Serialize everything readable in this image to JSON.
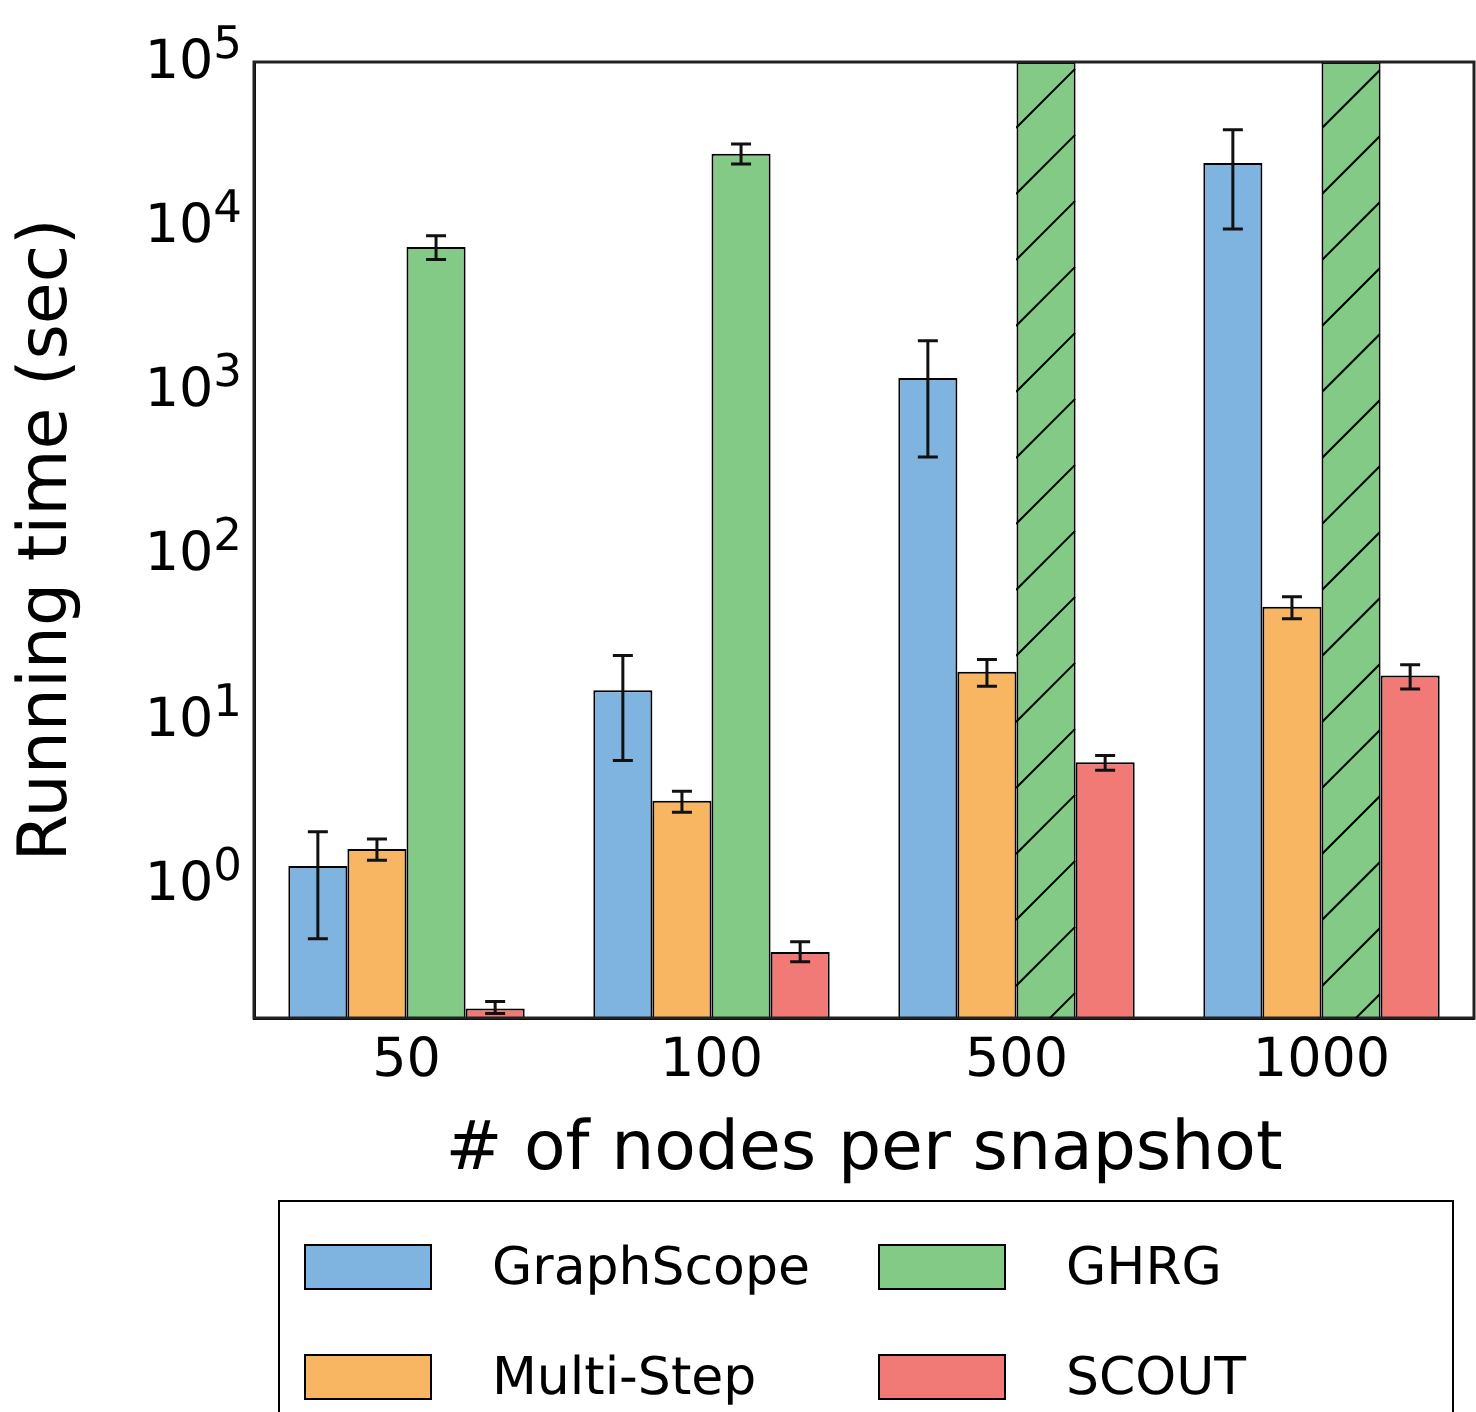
{
  "chart_data": {
    "type": "bar",
    "xlabel": "# of nodes per snapshot",
    "ylabel": "Running time (sec)",
    "categories": [
      "50",
      "100",
      "500",
      "1000"
    ],
    "log": true,
    "ylim": [
      0.155,
      100000
    ],
    "yticks": [
      {
        "value": 1,
        "label": "10$^{0}$"
      },
      {
        "value": 10,
        "label": "10$^{1}$"
      },
      {
        "value": 100,
        "label": "10$^{2}$"
      },
      {
        "value": 1000,
        "label": "10$^{3}$"
      },
      {
        "value": 10000,
        "label": "10$^{4}$"
      },
      {
        "value": 100000,
        "label": "10$^{5}$"
      }
    ],
    "grid": false,
    "legend": "bottom",
    "series": [
      {
        "name": "GraphScope",
        "color": "#7fb3e0",
        "values": [
          1.3,
          15.2,
          1200,
          24300
        ],
        "errors": [
          [
            0.47,
            2.1
          ],
          [
            5.7,
            24.7
          ],
          [
            398,
            2020
          ],
          [
            9670,
            38700
          ]
        ]
      },
      {
        "name": "Multi-Step",
        "color": "#f8b662",
        "values": [
          1.65,
          3.24,
          19.7,
          48.9
        ],
        "errors": [
          [
            1.41,
            1.9
          ],
          [
            2.76,
            3.7
          ],
          [
            16.1,
            23.4
          ],
          [
            41.3,
            56.3
          ]
        ]
      },
      {
        "name": "GHRG",
        "color": "#83ca87",
        "values": [
          7500,
          27700,
          100000,
          100000
        ],
        "errors": [
          [
            6300,
            8800
          ],
          [
            24000,
            31800
          ],
          null,
          null
        ]
      },
      {
        "name": "SCOUT",
        "color": "#f17a77",
        "values": [
          0.177,
          0.39,
          5.56,
          18.7
        ],
        "errors": [
          [
            0.165,
            0.195
          ],
          [
            0.34,
            0.45
          ],
          [
            4.97,
            6.1
          ],
          [
            15.5,
            21.7
          ]
        ]
      }
    ]
  }
}
